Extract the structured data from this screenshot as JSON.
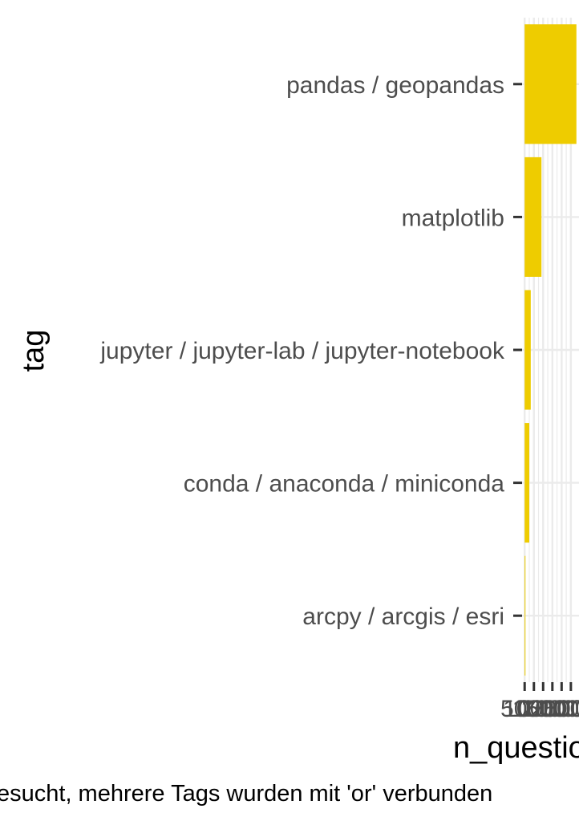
{
  "chart_data": {
    "type": "bar",
    "orientation": "horizontal",
    "categories": [
      "pandas / geopandas",
      "matplotlib",
      "jupyter / jupyter-lab / jupyter-notebook",
      "conda / anaconda / miniconda",
      "arcpy / arcgis / esri"
    ],
    "values": [
      280000,
      91000,
      33000,
      25000,
      4000
    ],
    "x_ticks": [
      0,
      50000,
      100000,
      150000,
      200000,
      250000
    ],
    "x_tick_labels": [
      "0",
      "50000",
      "100000",
      "150000",
      "200000",
      "250000"
    ],
    "xlim": [
      -14000,
      294000
    ],
    "xlabel": "n_questions",
    "ylabel": "tag",
    "caption": "esucht, mehrere Tags wurden mit 'or' verbunden",
    "bar_color": "#EECC00",
    "grid": true,
    "panel_background": "#FFFFFF",
    "grid_color": "#EBEBEB",
    "axis_color": "#333333",
    "tick_text_color": "#4D4D4D"
  }
}
